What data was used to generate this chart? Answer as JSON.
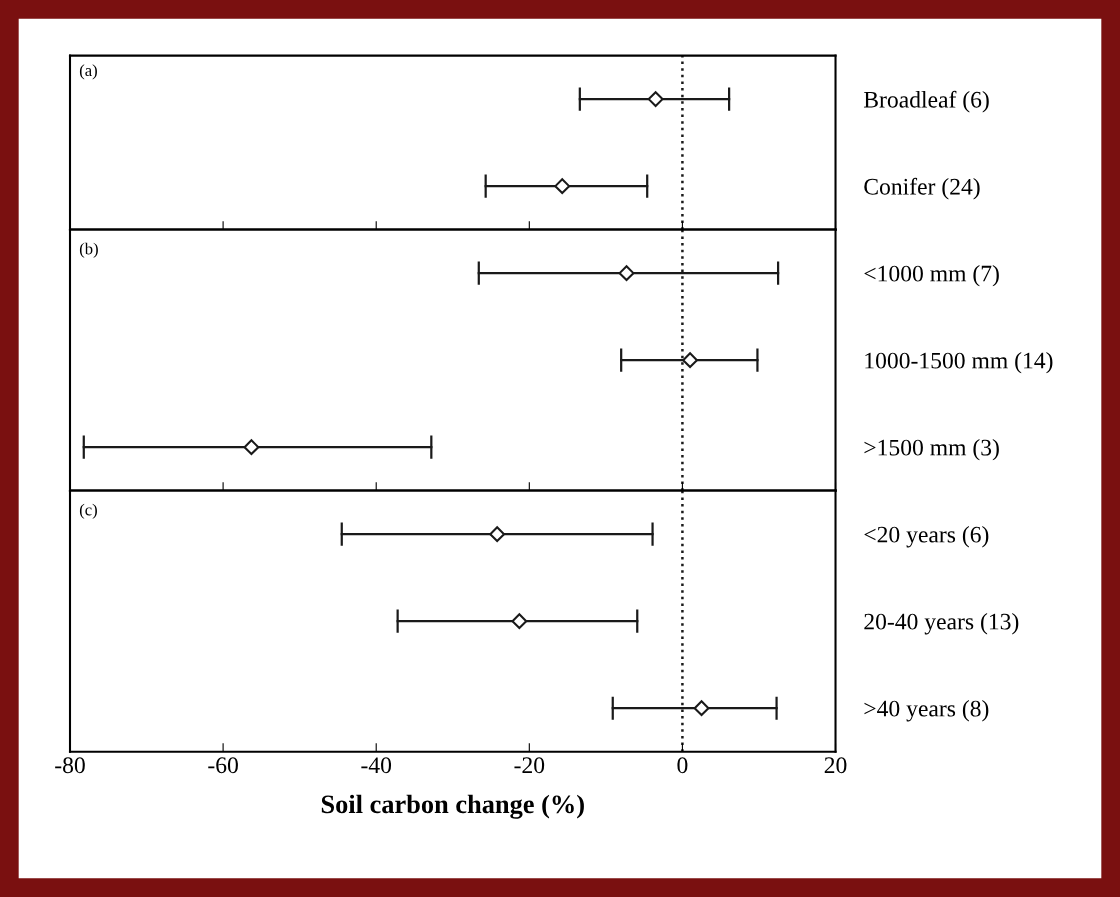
{
  "chart_data": [
    {
      "type": "scatter",
      "orientation": "horizontal",
      "categories": [
        "Broadleaf (6)",
        "Conifer (24)"
      ],
      "values": [
        -3.5,
        -15.7
      ],
      "errors": [
        [
          -13.4,
          6.1
        ],
        [
          -25.7,
          -4.6
        ]
      ],
      "color": "#1a1a1a",
      "marker": "diamond",
      "xlim": [
        -80,
        20
      ],
      "xticks": [
        -80,
        -60,
        -40,
        -20,
        0,
        20
      ],
      "tick_labels": "y",
      "ref_lines": [
        {
          "axis": "x",
          "value": 0,
          "line_style": "dotted",
          "color": "#1a1a1a"
        }
      ],
      "annotations": [
        "(a)"
      ],
      "grid": false,
      "legend": false
    },
    {
      "type": "scatter",
      "orientation": "horizontal",
      "categories": [
        "<1000 mm (7)",
        "1000-1500 mm (14)",
        ">1500 mm (3)"
      ],
      "values": [
        -7.3,
        1.0,
        -56.3
      ],
      "errors": [
        [
          -26.6,
          12.5
        ],
        [
          -8.0,
          9.8
        ],
        [
          -78.2,
          -32.8
        ]
      ],
      "color": "#1a1a1a",
      "marker": "diamond",
      "xlim": [
        -80,
        20
      ],
      "xticks": [
        -80,
        -60,
        -40,
        -20,
        0,
        20
      ],
      "tick_labels": "y",
      "ref_lines": [
        {
          "axis": "x",
          "value": 0,
          "line_style": "dotted",
          "color": "#1a1a1a"
        }
      ],
      "annotations": [
        "(b)"
      ],
      "grid": false,
      "legend": false
    },
    {
      "type": "scatter",
      "orientation": "horizontal",
      "categories": [
        "<20 years (6)",
        "20-40 years (13)",
        ">40 years (8)"
      ],
      "values": [
        -24.2,
        -21.3,
        2.5
      ],
      "errors": [
        [
          -44.5,
          -3.9
        ],
        [
          -37.2,
          -5.9
        ],
        [
          -9.1,
          12.3
        ]
      ],
      "color": "#1a1a1a",
      "marker": "diamond",
      "xlim": [
        -80,
        20
      ],
      "xticks": [
        -80,
        -60,
        -40,
        -20,
        0,
        20
      ],
      "xlabel": "Soil carbon change (%)",
      "ref_lines": [
        {
          "axis": "x",
          "value": 0,
          "line_style": "dotted",
          "color": "#1a1a1a"
        }
      ],
      "annotations": [
        "(c)"
      ],
      "grid": false,
      "legend": false
    }
  ]
}
